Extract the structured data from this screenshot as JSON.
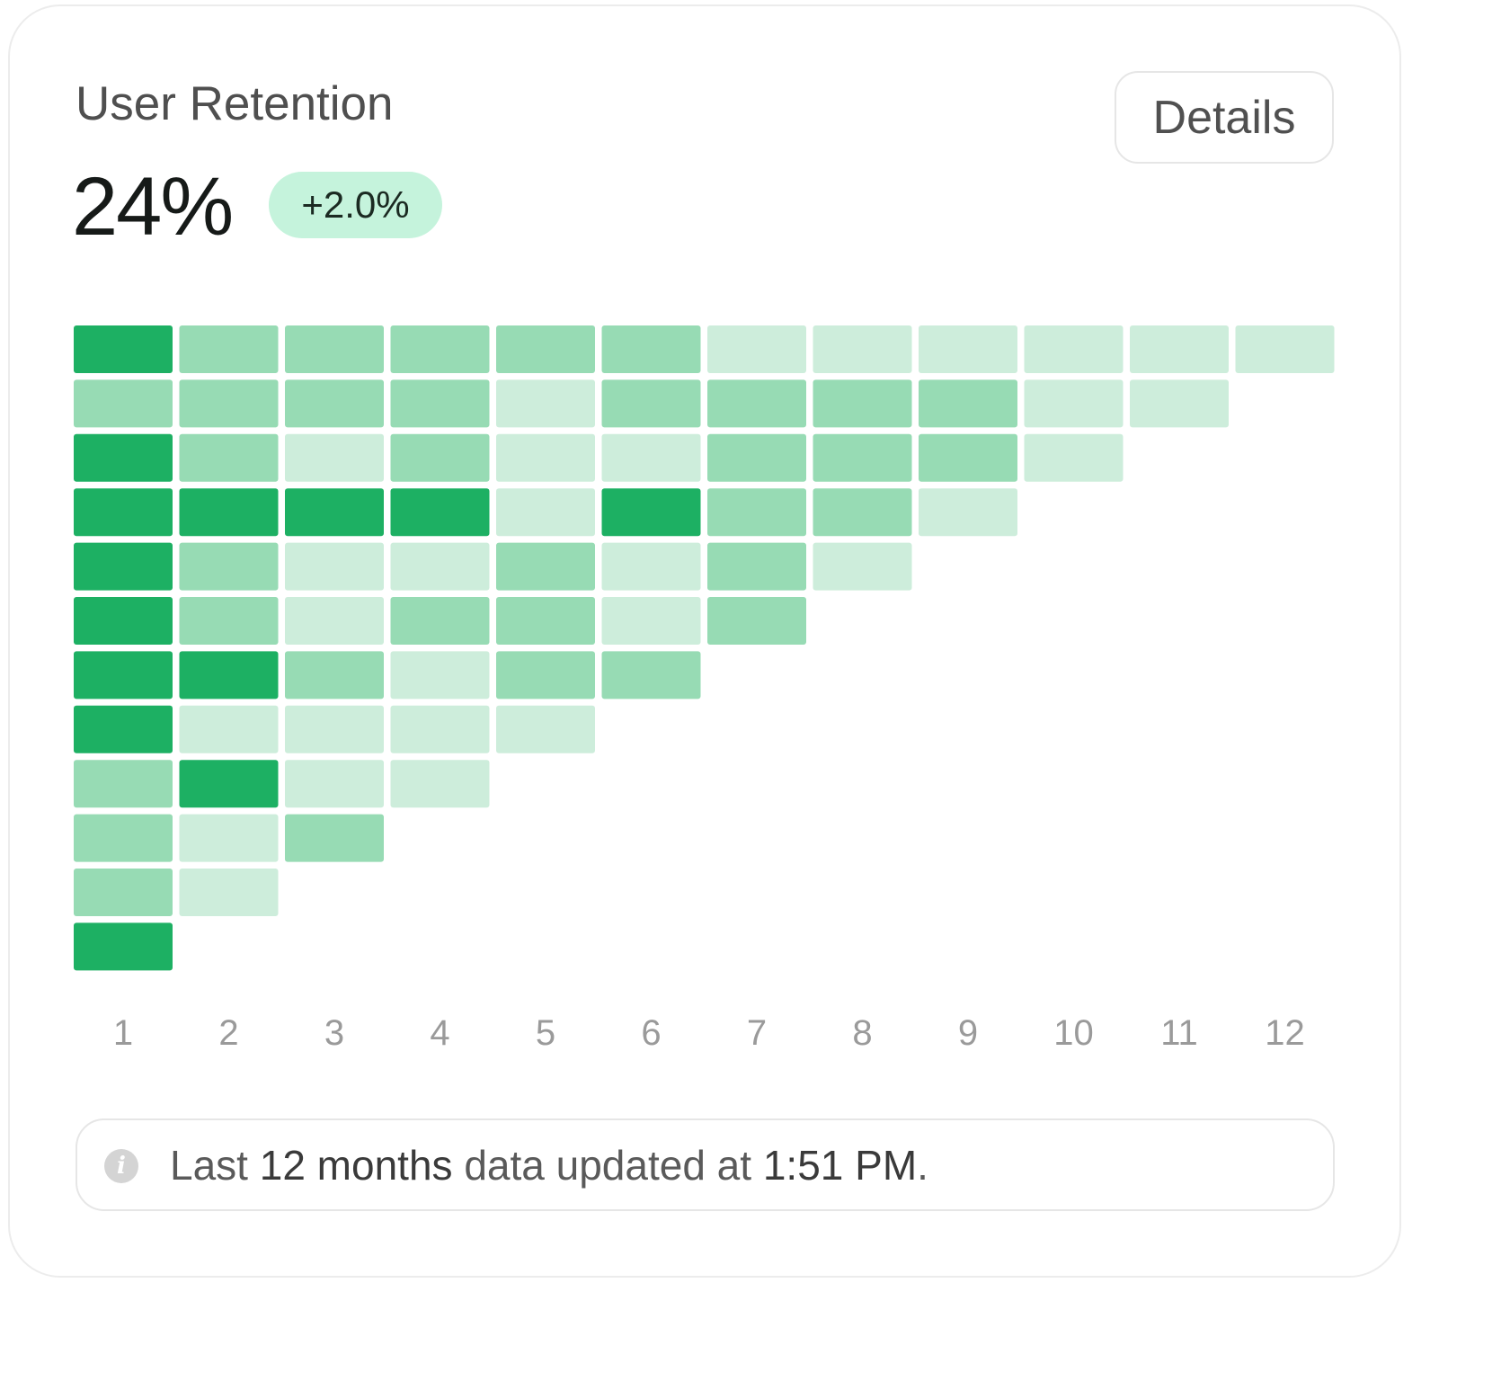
{
  "card": {
    "title": "User Retention",
    "value": "24%",
    "delta": "+2.0%",
    "details_label": "Details"
  },
  "footer": {
    "prefix": "Last",
    "period": "12 months",
    "middle": "data updated at",
    "time": "1:51 PM",
    "suffix": "."
  },
  "colors": {
    "high": "#1db063",
    "medium": "#97dbb4",
    "low": "#cdeddb",
    "badge": "#c5f3dc"
  },
  "chart_data": {
    "type": "heatmap",
    "x": [
      "1",
      "2",
      "3",
      "4",
      "5",
      "6",
      "7",
      "8",
      "9",
      "10",
      "11",
      "12"
    ],
    "levels": [
      "low",
      "medium",
      "high"
    ],
    "rows": [
      [
        "high",
        "medium",
        "medium",
        "medium",
        "medium",
        "medium",
        "low",
        "low",
        "low",
        "low",
        "low",
        "low"
      ],
      [
        "medium",
        "medium",
        "medium",
        "medium",
        "low",
        "medium",
        "medium",
        "medium",
        "medium",
        "low",
        "low"
      ],
      [
        "high",
        "medium",
        "low",
        "medium",
        "low",
        "low",
        "medium",
        "medium",
        "medium",
        "low"
      ],
      [
        "high",
        "high",
        "high",
        "high",
        "low",
        "high",
        "medium",
        "medium",
        "low"
      ],
      [
        "high",
        "medium",
        "low",
        "low",
        "medium",
        "low",
        "medium",
        "low"
      ],
      [
        "high",
        "medium",
        "low",
        "medium",
        "medium",
        "low",
        "medium"
      ],
      [
        "high",
        "high",
        "medium",
        "low",
        "medium",
        "medium"
      ],
      [
        "high",
        "low",
        "low",
        "low",
        "low"
      ],
      [
        "medium",
        "high",
        "low",
        "low"
      ],
      [
        "medium",
        "low",
        "medium"
      ],
      [
        "medium",
        "low"
      ],
      [
        "high"
      ]
    ]
  }
}
